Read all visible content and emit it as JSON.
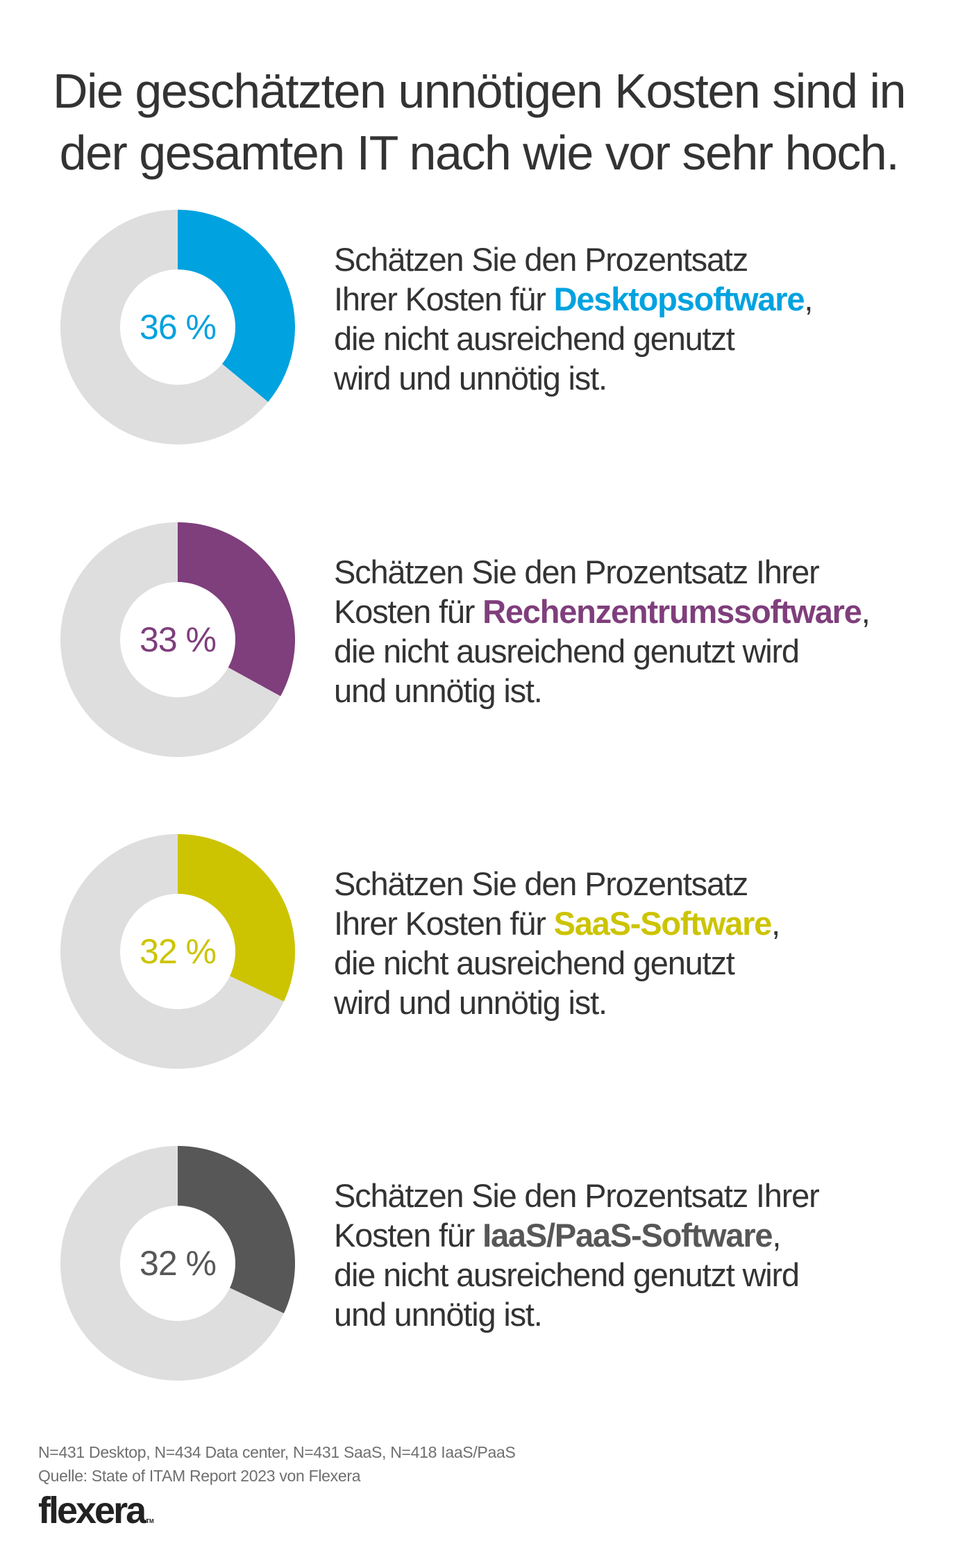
{
  "title": {
    "line1": "Die geschätzten unnötigen Kosten sind in",
    "line2": "der gesamten IT nach wie vor sehr hoch."
  },
  "colors": {
    "remainder": "#DEDEDE",
    "text": "#333333",
    "footer_text": "#6F6F6F"
  },
  "chart_data": {
    "type": "pie",
    "variant": "donut",
    "title": "Die geschätzten unnötigen Kosten sind in der gesamten IT nach wie vor sehr hoch.",
    "series": [
      {
        "name": "Desktopsoftware",
        "value": 36,
        "label": "36 %",
        "color": "#00A2DF"
      },
      {
        "name": "Rechenzentrumssoftware",
        "value": 33,
        "label": "33 %",
        "color": "#7F3E7C"
      },
      {
        "name": "SaaS-Software",
        "value": 32,
        "label": "32 %",
        "color": "#CCC400"
      },
      {
        "name": "IaaS/PaaS-Software",
        "value": 32,
        "label": "32 %",
        "color": "#575757"
      }
    ],
    "max": 100
  },
  "items": [
    {
      "pct_label": "36 %",
      "color": "#00A2DF",
      "lines": [
        {
          "pre": "Schätzen Sie den Prozentsatz",
          "hl": "",
          "post": ""
        },
        {
          "pre": "Ihrer Kosten für ",
          "hl": "Desktopsoftware",
          "post": ","
        },
        {
          "pre": "die nicht ausreichend genutzt",
          "hl": "",
          "post": ""
        },
        {
          "pre": "wird und unnötig ist.",
          "hl": "",
          "post": ""
        }
      ]
    },
    {
      "pct_label": "33 %",
      "color": "#7F3E7C",
      "lines": [
        {
          "pre": "Schätzen Sie den Prozentsatz Ihrer",
          "hl": "",
          "post": ""
        },
        {
          "pre": "Kosten für ",
          "hl": "Rechenzentrumssoftware",
          "post": ","
        },
        {
          "pre": "die nicht ausreichend genutzt wird",
          "hl": "",
          "post": ""
        },
        {
          "pre": "und unnötig ist.",
          "hl": "",
          "post": ""
        }
      ]
    },
    {
      "pct_label": "32 %",
      "color": "#CCC400",
      "lines": [
        {
          "pre": "Schätzen Sie den Prozentsatz",
          "hl": "",
          "post": ""
        },
        {
          "pre": "Ihrer Kosten für ",
          "hl": "SaaS-Software",
          "post": ","
        },
        {
          "pre": "die nicht ausreichend genutzt",
          "hl": "",
          "post": ""
        },
        {
          "pre": "wird und unnötig ist.",
          "hl": "",
          "post": ""
        }
      ]
    },
    {
      "pct_label": "32 %",
      "color": "#575757",
      "lines": [
        {
          "pre": "Schätzen Sie den Prozentsatz Ihrer",
          "hl": "",
          "post": ""
        },
        {
          "pre": "Kosten für ",
          "hl": "IaaS/PaaS-Software",
          "post": ","
        },
        {
          "pre": "die nicht ausreichend genutzt wird",
          "hl": "",
          "post": ""
        },
        {
          "pre": "und unnötig ist.",
          "hl": "",
          "post": ""
        }
      ]
    }
  ],
  "footer": {
    "sample_note": "N=431 Desktop, N=434 Data center, N=431 SaaS, N=418 IaaS/PaaS",
    "source": "Quelle: State of ITAM Report 2023 von Flexera"
  },
  "logo": {
    "text": "flexera",
    "tm": "TM"
  }
}
